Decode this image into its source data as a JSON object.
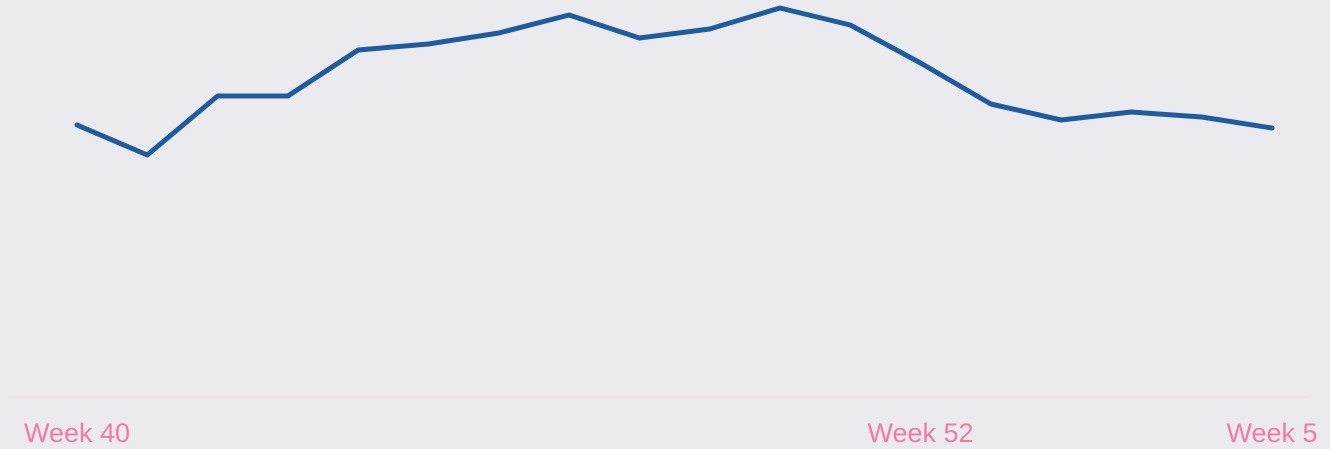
{
  "chart_data": {
    "type": "line",
    "categories": [
      "Week 40",
      null,
      null,
      null,
      null,
      null,
      null,
      null,
      null,
      null,
      null,
      null,
      "Week 52",
      null,
      null,
      null,
      null,
      "Week 5"
    ],
    "series": [
      {
        "color": "#1f5c9e",
        "values": [
          272,
          242,
          301,
          301,
          347,
          353,
          364,
          382,
          359,
          368,
          389,
          372,
          334,
          293,
          277,
          285,
          280,
          269
        ]
      }
    ],
    "ylim": [
      0,
      397
    ]
  }
}
